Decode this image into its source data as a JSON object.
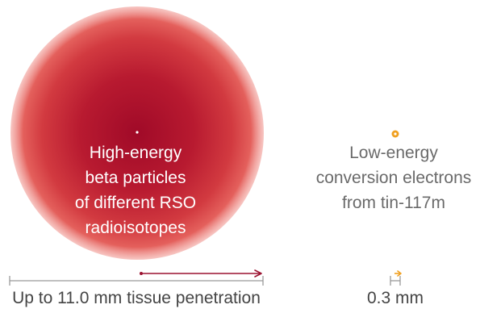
{
  "beta": {
    "label_lines": [
      "High-energy",
      "beta particles",
      "of different RSO",
      "radioisotopes"
    ],
    "caption": "Up to 11.0 mm tissue penetration",
    "range_mm": 11.0
  },
  "conversion": {
    "label_lines": [
      "Low-energy",
      "conversion electrons",
      "from tin-117m"
    ],
    "caption": "0.3 mm",
    "range_mm": 0.3
  },
  "colors": {
    "beta_core": "#a50d2a",
    "beta_edge": "#e86a68",
    "beta_arrow": "#9b1230",
    "conversion_dot": "#f0a020",
    "scale_line": "#9a9a9a",
    "caption_text": "#444444",
    "conversion_text": "#6a6a6a"
  }
}
